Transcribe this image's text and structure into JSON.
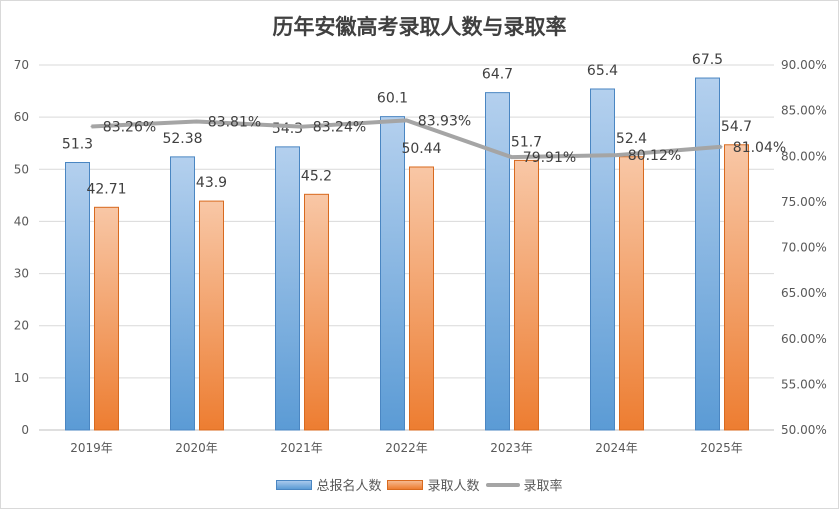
{
  "chart_data": {
    "type": "bar+line",
    "title": "历年安徽高考录取人数与录取率",
    "categories": [
      "2019年",
      "2020年",
      "2021年",
      "2022年",
      "2023年",
      "2024年",
      "2025年"
    ],
    "series": [
      {
        "name": "总报名人数",
        "type": "bar",
        "axis": "left",
        "color": "#5b9bd5",
        "values": [
          51.3,
          52.38,
          54.3,
          60.1,
          64.7,
          65.4,
          67.5
        ],
        "labels": [
          "51.3",
          "52.38",
          "54.3",
          "60.1",
          "64.7",
          "65.4",
          "67.5"
        ]
      },
      {
        "name": "录取人数",
        "type": "bar",
        "axis": "left",
        "color": "#ed7d31",
        "values": [
          42.71,
          43.9,
          45.2,
          50.44,
          51.7,
          52.4,
          54.7
        ],
        "labels": [
          "42.71",
          "43.9",
          "45.2",
          "50.44",
          "51.7",
          "52.4",
          "54.7"
        ]
      },
      {
        "name": "录取率",
        "type": "line",
        "axis": "right",
        "color": "#a5a5a5",
        "values": [
          83.26,
          83.81,
          83.24,
          83.93,
          79.91,
          80.12,
          81.04
        ],
        "labels": [
          "83.26%",
          "83.81%",
          "83.24%",
          "83.93%",
          "79.91%",
          "80.12%",
          "81.04%"
        ]
      }
    ],
    "ylim": [
      0,
      70
    ],
    "yticks": [
      "0",
      "10",
      "20",
      "30",
      "40",
      "50",
      "60",
      "70"
    ],
    "y2lim": [
      50,
      90
    ],
    "y2ticks": [
      "50.00%",
      "55.00%",
      "60.00%",
      "65.00%",
      "70.00%",
      "75.00%",
      "80.00%",
      "85.00%",
      "90.00%"
    ],
    "grid": true,
    "legend": "bottom"
  }
}
